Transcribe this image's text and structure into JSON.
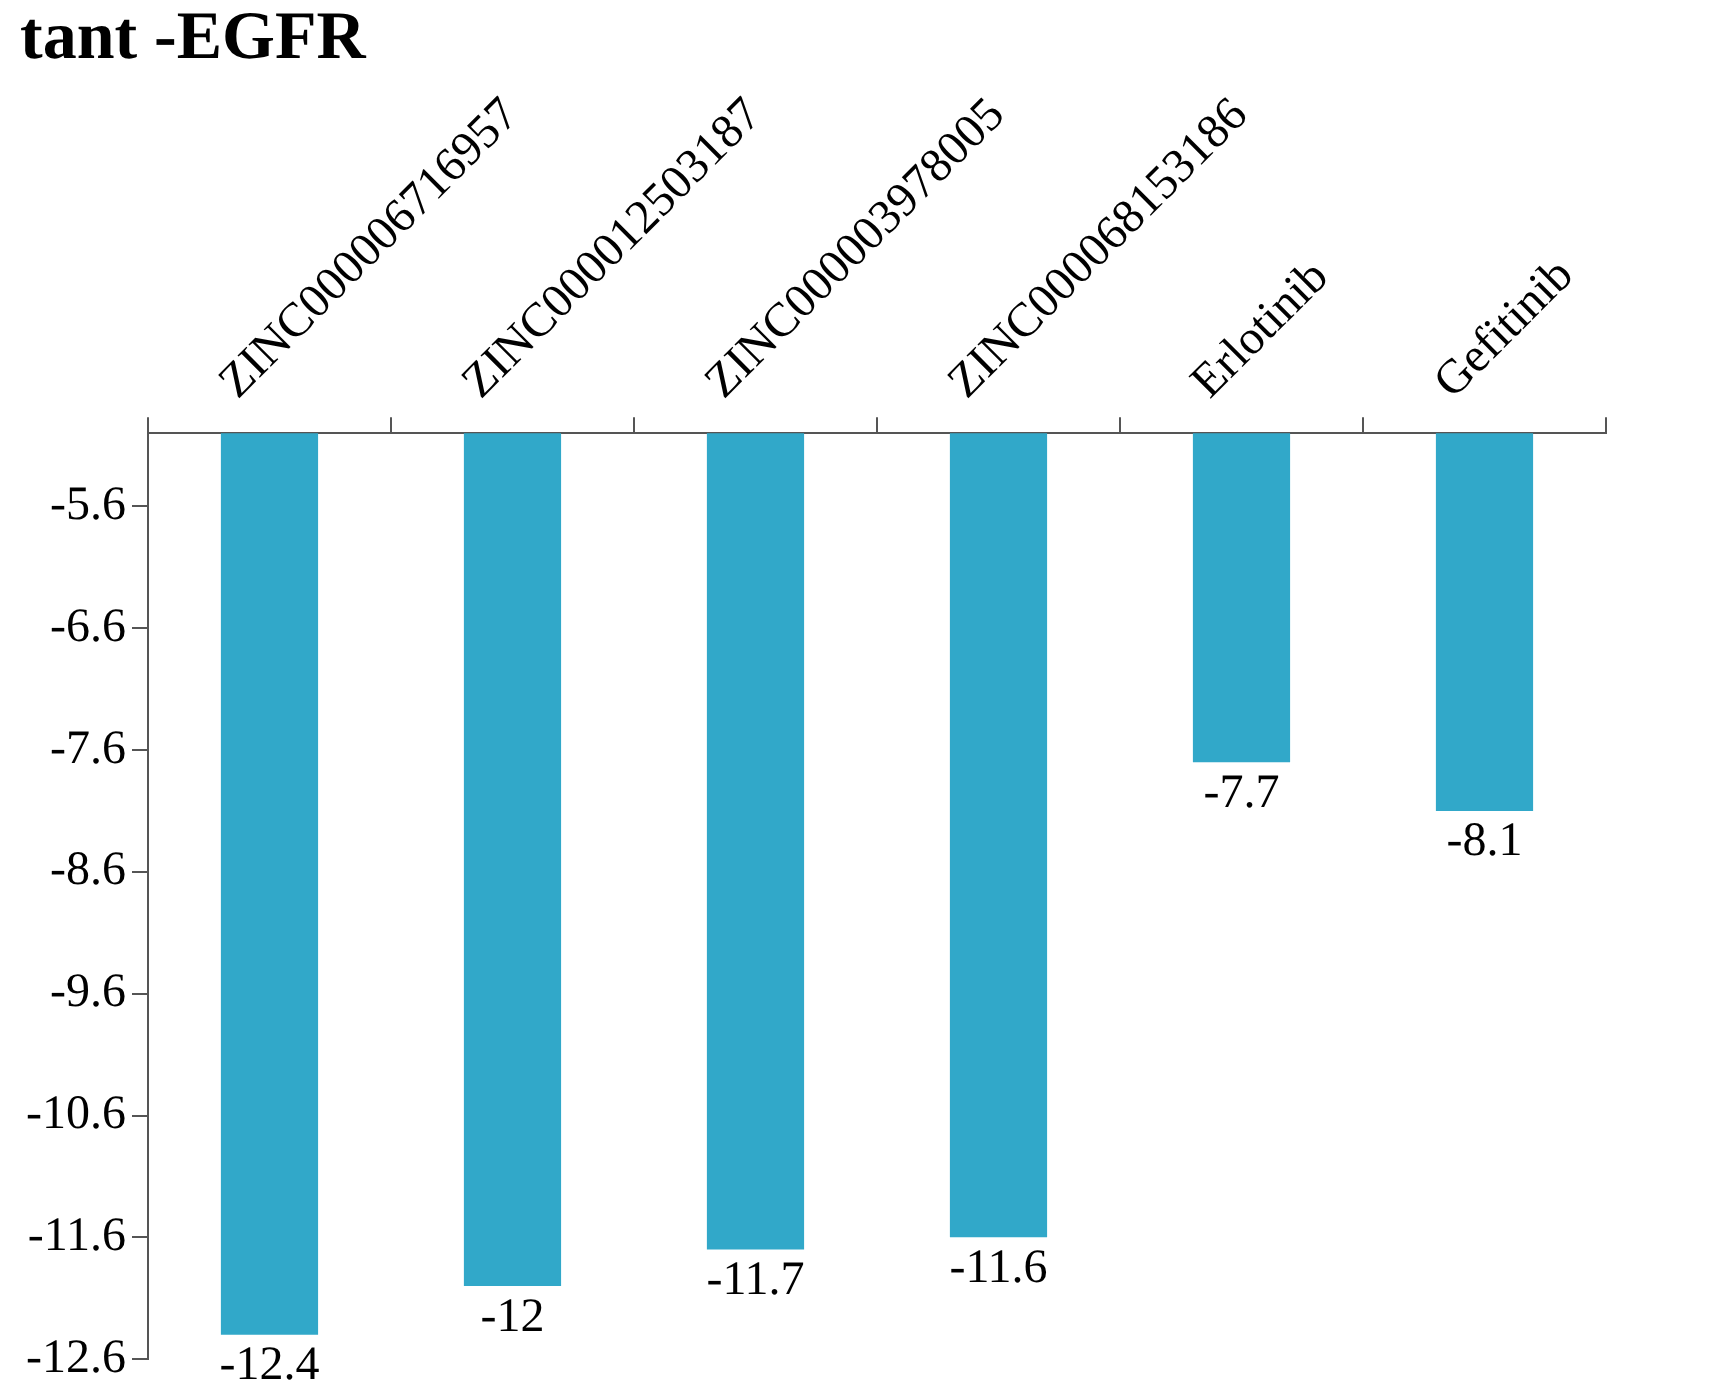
{
  "chart_data": {
    "type": "bar",
    "title": "tant -EGFR",
    "categories": [
      "ZINC000006716957",
      "ZINC000012503187",
      "ZINC000003978005",
      "ZINC000068153186",
      "Erlotinib",
      "Gefitinib"
    ],
    "values": [
      -12.4,
      -12,
      -11.7,
      -11.6,
      -7.7,
      -8.1
    ],
    "color": "#31a8c9",
    "ylim": [
      -12.6,
      -5
    ],
    "yticks": [
      -5.6,
      -6.6,
      -7.6,
      -8.6,
      -9.6,
      -10.6,
      -11.6,
      -12.6
    ],
    "grid": false,
    "legend": false,
    "data_labels": true
  }
}
